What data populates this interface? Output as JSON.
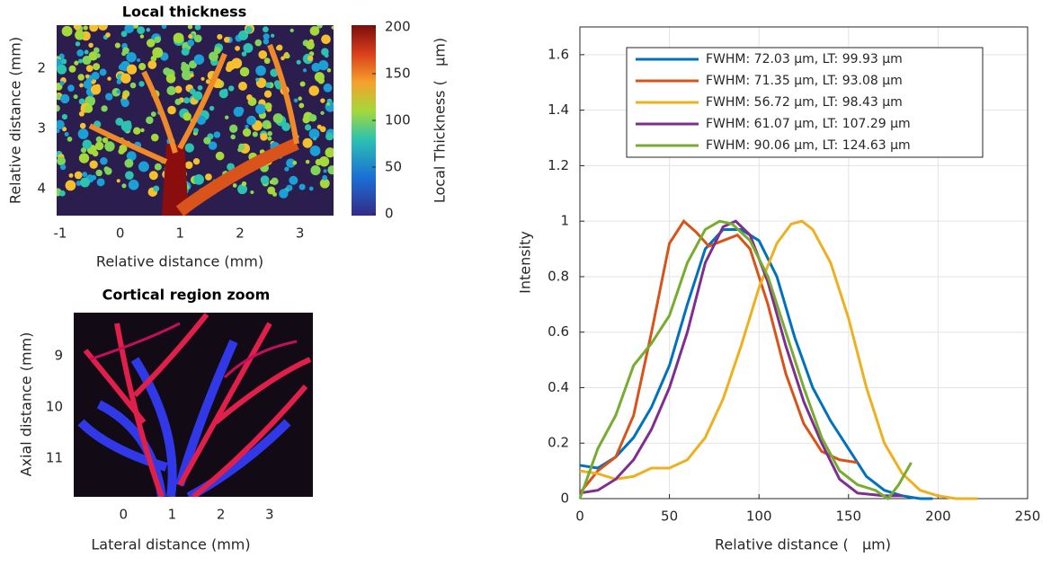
{
  "chart_data": [
    {
      "type": "image",
      "title": "Local thickness",
      "xlabel": "Relative distance (mm)",
      "ylabel": "Relative distance (mm)",
      "xlim": [
        -1.06,
        3.56
      ],
      "xticks": [
        -1,
        0,
        1,
        2,
        3
      ],
      "ylim": [
        4.45,
        1.28
      ],
      "yticks": [
        2,
        3,
        4
      ],
      "colorbar": {
        "label": "Local Thickness (   μm)",
        "clim": [
          0,
          200
        ],
        "ticks": [
          0,
          50,
          100,
          150,
          200
        ]
      }
    },
    {
      "type": "image",
      "title": "Cortical region zoom",
      "xlabel": "Lateral distance (mm)",
      "ylabel": "Axial distance (mm)",
      "xlim": [
        -1.02,
        3.89
      ],
      "xticks": [
        0,
        1,
        2,
        3
      ],
      "ylim": [
        11.75,
        8.16
      ],
      "yticks": [
        9,
        10,
        11
      ]
    },
    {
      "type": "line",
      "xlabel": "Relative distance (   μm)",
      "ylabel": "Intensity",
      "xlim": [
        0,
        250
      ],
      "xticks": [
        0,
        50,
        100,
        150,
        200,
        250
      ],
      "ylim": [
        0,
        1.7
      ],
      "yticks": [
        0,
        0.2,
        0.4,
        0.6,
        0.8,
        1,
        1.2,
        1.4,
        1.6
      ],
      "grid": true,
      "legend": "top",
      "series": [
        {
          "name": "FWHM: 72.03 µm, LT: 99.93 µm",
          "color": "#0072bd",
          "x": [
            0,
            10,
            20,
            30,
            40,
            50,
            60,
            70,
            80,
            90,
            100,
            110,
            120,
            130,
            140,
            150,
            160,
            170,
            180,
            190,
            197
          ],
          "values": [
            0.12,
            0.11,
            0.15,
            0.22,
            0.33,
            0.48,
            0.7,
            0.9,
            0.97,
            0.97,
            0.93,
            0.8,
            0.58,
            0.4,
            0.28,
            0.18,
            0.08,
            0.03,
            0.01,
            0.0,
            0
          ]
        },
        {
          "name": "FWHM: 71.35 µm, LT: 93.08 µm",
          "color": "#d95319",
          "x": [
            0,
            10,
            20,
            30,
            40,
            50,
            58,
            65,
            72,
            80,
            88,
            95,
            105,
            115,
            125,
            135,
            145,
            155
          ],
          "values": [
            0.02,
            0.1,
            0.15,
            0.3,
            0.6,
            0.92,
            1.0,
            0.96,
            0.91,
            0.93,
            0.95,
            0.9,
            0.7,
            0.45,
            0.27,
            0.17,
            0.14,
            0.13
          ]
        },
        {
          "name": "FWHM: 56.72 µm, LT: 98.43 µm",
          "color": "#edb120",
          "x": [
            0,
            10,
            20,
            30,
            40,
            50,
            60,
            70,
            80,
            90,
            100,
            110,
            118,
            124,
            130,
            140,
            150,
            160,
            170,
            180,
            190,
            200,
            210,
            222
          ],
          "values": [
            0.1,
            0.09,
            0.07,
            0.08,
            0.11,
            0.11,
            0.14,
            0.22,
            0.36,
            0.55,
            0.76,
            0.92,
            0.99,
            1.0,
            0.97,
            0.85,
            0.65,
            0.4,
            0.2,
            0.09,
            0.03,
            0.01,
            0.0,
            0
          ]
        },
        {
          "name": "FWHM: 61.07 µm, LT: 107.29 µm",
          "color": "#7e2f8e",
          "x": [
            0,
            10,
            20,
            30,
            40,
            50,
            60,
            70,
            80,
            87,
            95,
            105,
            115,
            125,
            135,
            145,
            155,
            170,
            180
          ],
          "values": [
            0.02,
            0.03,
            0.07,
            0.14,
            0.25,
            0.4,
            0.6,
            0.85,
            0.98,
            1.0,
            0.95,
            0.78,
            0.55,
            0.35,
            0.2,
            0.07,
            0.02,
            0.01,
            0.01
          ]
        },
        {
          "name": "FWHM: 90.06 µm, LT: 124.63 µm",
          "color": "#77ac30",
          "x": [
            0,
            10,
            20,
            30,
            40,
            50,
            60,
            70,
            78,
            85,
            95,
            105,
            115,
            125,
            135,
            145,
            155,
            165,
            172,
            178,
            185
          ],
          "values": [
            0,
            0.18,
            0.3,
            0.48,
            0.56,
            0.66,
            0.85,
            0.97,
            1.0,
            0.99,
            0.93,
            0.8,
            0.6,
            0.4,
            0.22,
            0.1,
            0.05,
            0.03,
            0,
            0.05,
            0.13
          ]
        }
      ]
    }
  ]
}
